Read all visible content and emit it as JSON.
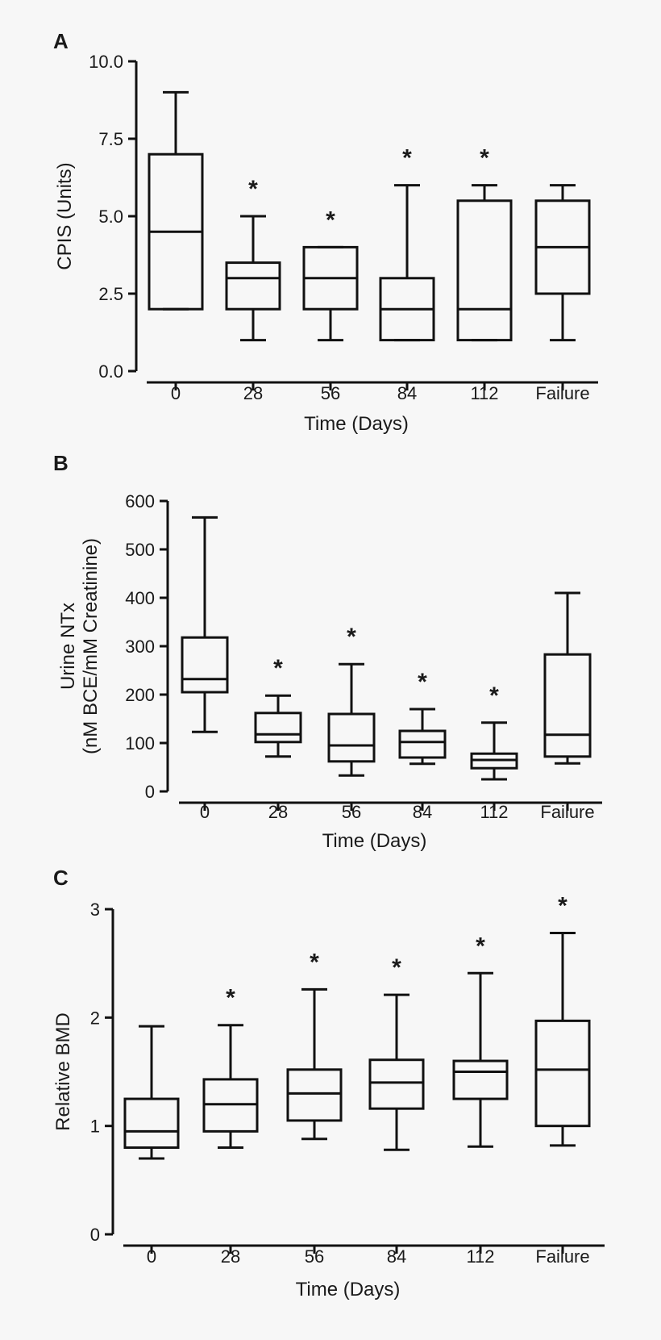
{
  "chart_data": [
    {
      "panel": "A",
      "type": "box",
      "categories": [
        "0",
        "28",
        "56",
        "84",
        "112",
        "Failure"
      ],
      "xlabel": "Time (Days)",
      "ylabel": [
        "CPIS (Units)"
      ],
      "ylim": [
        0,
        10
      ],
      "yticks": [
        0,
        2.5,
        5,
        7.5,
        10
      ],
      "ytick_labels": [
        "0.0",
        "2.5",
        "5.0",
        "7.5",
        "10.0"
      ],
      "boxes": [
        {
          "whisker_low": 2,
          "q1": 2,
          "median": 4.5,
          "q3": 7,
          "whisker_high": 9,
          "significant": false
        },
        {
          "whisker_low": 1,
          "q1": 2,
          "median": 3,
          "q3": 3.5,
          "whisker_high": 5,
          "significant": true
        },
        {
          "whisker_low": 1,
          "q1": 2,
          "median": 3,
          "q3": 4,
          "whisker_high": 4,
          "significant": true
        },
        {
          "whisker_low": 1,
          "q1": 1,
          "median": 2,
          "q3": 3,
          "whisker_high": 6,
          "significant": true
        },
        {
          "whisker_low": 1,
          "q1": 1,
          "median": 2,
          "q3": 5.5,
          "whisker_high": 6,
          "significant": true
        },
        {
          "whisker_low": 1,
          "q1": 2.5,
          "median": 4,
          "q3": 5.5,
          "whisker_high": 6,
          "significant": false
        }
      ],
      "significance_marker": "*"
    },
    {
      "panel": "B",
      "type": "box",
      "categories": [
        "0",
        "28",
        "56",
        "84",
        "112",
        "Failure"
      ],
      "xlabel": "Time (Days)",
      "ylabel": [
        "Urine NTx",
        "(nM BCE/mM Creatinine)"
      ],
      "ylim": [
        0,
        600
      ],
      "yticks": [
        0,
        100,
        200,
        300,
        400,
        500,
        600
      ],
      "ytick_labels": [
        "0",
        "100",
        "200",
        "300",
        "400",
        "500",
        "600"
      ],
      "boxes": [
        {
          "whisker_low": 123,
          "q1": 205,
          "median": 232,
          "q3": 318,
          "whisker_high": 566,
          "significant": false
        },
        {
          "whisker_low": 72,
          "q1": 102,
          "median": 118,
          "q3": 162,
          "whisker_high": 198,
          "significant": true
        },
        {
          "whisker_low": 33,
          "q1": 62,
          "median": 95,
          "q3": 160,
          "whisker_high": 263,
          "significant": true
        },
        {
          "whisker_low": 57,
          "q1": 70,
          "median": 102,
          "q3": 125,
          "whisker_high": 170,
          "significant": true
        },
        {
          "whisker_low": 25,
          "q1": 48,
          "median": 65,
          "q3": 78,
          "whisker_high": 142,
          "significant": true
        },
        {
          "whisker_low": 58,
          "q1": 72,
          "median": 117,
          "q3": 283,
          "whisker_high": 410,
          "significant": false
        }
      ],
      "significance_marker": "*"
    },
    {
      "panel": "C",
      "type": "box",
      "categories": [
        "0",
        "28",
        "56",
        "84",
        "112",
        "Failure"
      ],
      "xlabel": "Time (Days)",
      "ylabel": [
        "Relative BMD"
      ],
      "ylim": [
        0,
        3
      ],
      "yticks": [
        0,
        1,
        2,
        3
      ],
      "ytick_labels": [
        "0",
        "1",
        "2",
        "3"
      ],
      "boxes": [
        {
          "whisker_low": 0.7,
          "q1": 0.8,
          "median": 0.95,
          "q3": 1.25,
          "whisker_high": 1.92,
          "significant": false
        },
        {
          "whisker_low": 0.8,
          "q1": 0.95,
          "median": 1.2,
          "q3": 1.43,
          "whisker_high": 1.93,
          "significant": true
        },
        {
          "whisker_low": 0.88,
          "q1": 1.05,
          "median": 1.3,
          "q3": 1.52,
          "whisker_high": 2.26,
          "significant": true
        },
        {
          "whisker_low": 0.78,
          "q1": 1.16,
          "median": 1.4,
          "q3": 1.61,
          "whisker_high": 2.21,
          "significant": true
        },
        {
          "whisker_low": 0.81,
          "q1": 1.25,
          "median": 1.5,
          "q3": 1.6,
          "whisker_high": 2.41,
          "significant": true
        },
        {
          "whisker_low": 0.82,
          "q1": 1.0,
          "median": 1.52,
          "q3": 1.97,
          "whisker_high": 2.78,
          "significant": true
        }
      ],
      "significance_marker": "*"
    }
  ]
}
